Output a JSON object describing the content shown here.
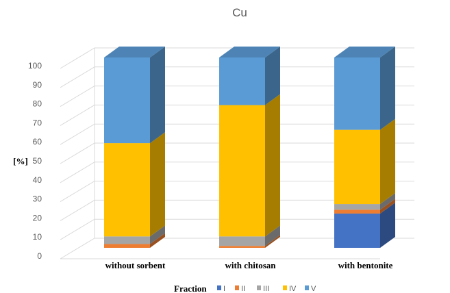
{
  "chart_data": {
    "type": "bar",
    "stacked": true,
    "three_d": true,
    "title": "Cu",
    "ylabel": "[%]",
    "xlabel": "",
    "ylim": [
      0,
      100
    ],
    "yticks": [
      0,
      10,
      20,
      30,
      40,
      50,
      60,
      70,
      80,
      90,
      100
    ],
    "grid": true,
    "categories": [
      "without sorbent",
      "with chitosan",
      "with bentonite"
    ],
    "legend_title": "Fraction",
    "legend_position": "bottom",
    "series": [
      {
        "name": "I",
        "color": "#4472C4",
        "values": [
          0,
          0,
          18
        ]
      },
      {
        "name": "II",
        "color": "#ED7D31",
        "values": [
          2,
          1,
          2
        ]
      },
      {
        "name": "III",
        "color": "#A5A5A5",
        "values": [
          4,
          5,
          3
        ]
      },
      {
        "name": "IV",
        "color": "#FFC000",
        "values": [
          49,
          69,
          39
        ]
      },
      {
        "name": "V",
        "color": "#5B9BD5",
        "values": [
          45,
          25,
          38
        ]
      }
    ]
  }
}
